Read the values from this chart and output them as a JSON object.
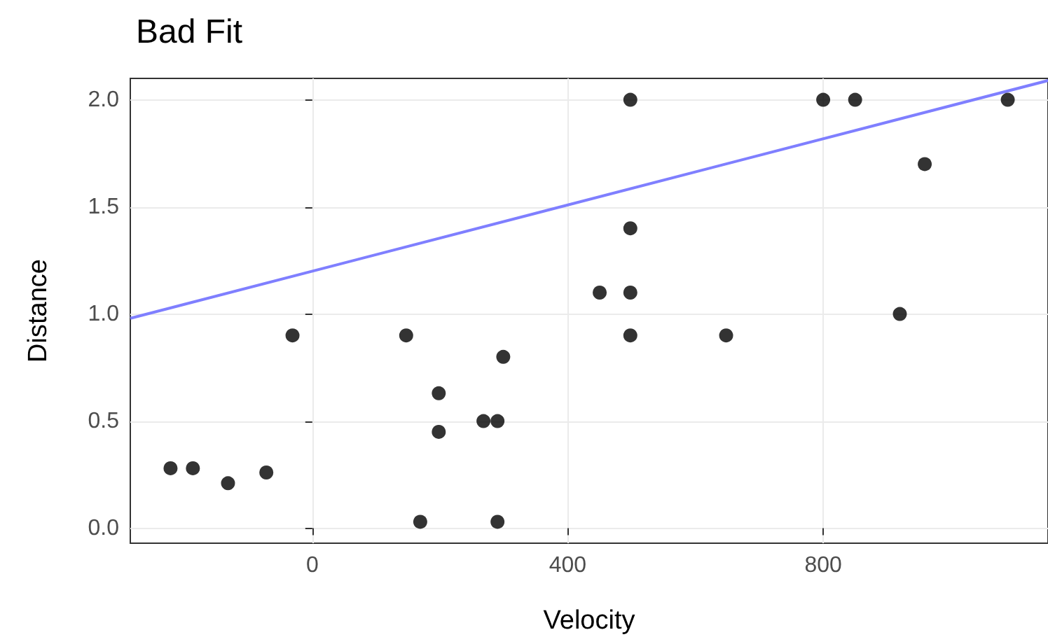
{
  "chart_data": {
    "type": "scatter",
    "title": "Bad Fit",
    "xlabel": "Velocity",
    "ylabel": "Distance",
    "xlim": [
      -285,
      1152
    ],
    "ylim": [
      -0.07,
      2.1
    ],
    "xticks": [
      0,
      400,
      800
    ],
    "yticks": [
      {
        "value": 0,
        "label": "0.0"
      },
      0.5,
      {
        "value": 1,
        "label": "1.0"
      },
      1.5,
      {
        "value": 2,
        "label": "2.0"
      }
    ],
    "grid": true,
    "marker": "circle",
    "series": [
      {
        "color": "#000000",
        "x": [
          -222,
          -187,
          -132,
          -72,
          -31,
          147,
          169,
          198,
          198,
          268,
          290,
          290,
          299,
          450,
          498,
          498,
          498,
          498,
          648,
          800,
          850,
          920,
          959,
          1089
        ],
        "values": [
          0.28,
          0.28,
          0.21,
          0.26,
          0.9,
          0.9,
          0.03,
          0.63,
          0.45,
          0.5,
          0.5,
          0.03,
          0.8,
          1.1,
          2,
          1.4,
          1.1,
          0.9,
          0.9,
          2,
          2,
          1,
          1.7,
          2
        ]
      },
      {
        "type": "line",
        "color": "#7f7fff",
        "x": [
          -285,
          1152
        ],
        "values": [
          0.98,
          2.09
        ],
        "marker": "none"
      }
    ]
  }
}
